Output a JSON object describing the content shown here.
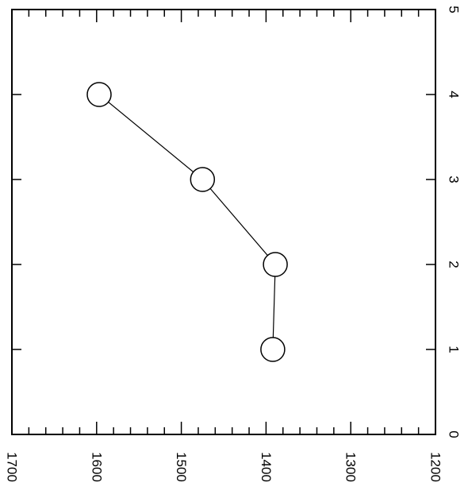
{
  "chart_data": {
    "type": "line",
    "orientation": "rotated-90",
    "title": "",
    "xlabel": "",
    "ylabel": "",
    "x_ticks": [
      "0",
      "1",
      "2",
      "3",
      "4",
      "5"
    ],
    "y_ticks": [
      "1700",
      "1600",
      "1500",
      "1400",
      "1300",
      "1200"
    ],
    "xlim": [
      0,
      5
    ],
    "ylim": [
      1700,
      1200
    ],
    "grid": false,
    "marker": "open-circle",
    "line_color": "#000000",
    "series": [
      {
        "x": [
          1,
          2,
          3,
          4
        ],
        "y": [
          1392,
          1389,
          1475,
          1597
        ]
      }
    ]
  }
}
